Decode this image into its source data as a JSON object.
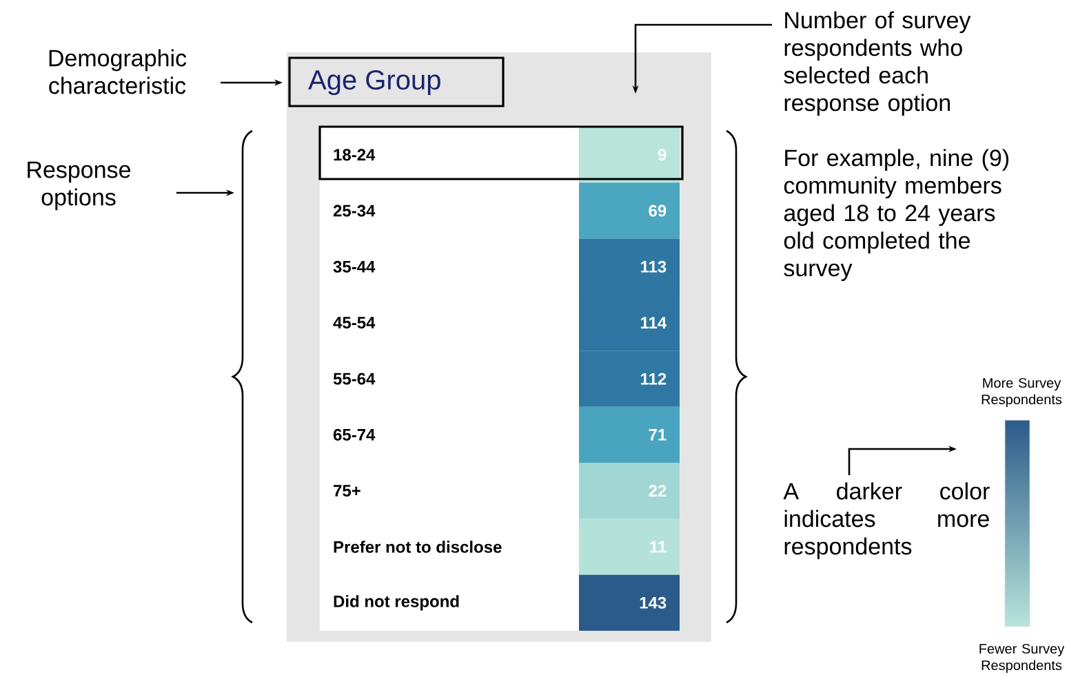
{
  "chart_data": {
    "type": "heatmap",
    "title": "Age Group",
    "categories": [
      null
    ],
    "y_categories": [
      "18-24",
      "25-34",
      "35-44",
      "45-54",
      "55-64",
      "65-74",
      "75+",
      "Prefer not to disclose",
      "Did not respond"
    ],
    "cells": [
      [
        9
      ],
      [
        69
      ],
      [
        113
      ],
      [
        114
      ],
      [
        112
      ],
      [
        71
      ],
      [
        22
      ],
      [
        11
      ],
      [
        143
      ]
    ],
    "data_labels": true,
    "annotations": [
      "Demographic characteristic",
      "Response options",
      "Number of survey respondents who selected each response option",
      "For example, nine (9) community members aged 18 to 24 years old completed the survey",
      "A darker color indicates more respondents",
      "More Survey Respondents",
      "Fewer Survey Respondents"
    ]
  }
}
